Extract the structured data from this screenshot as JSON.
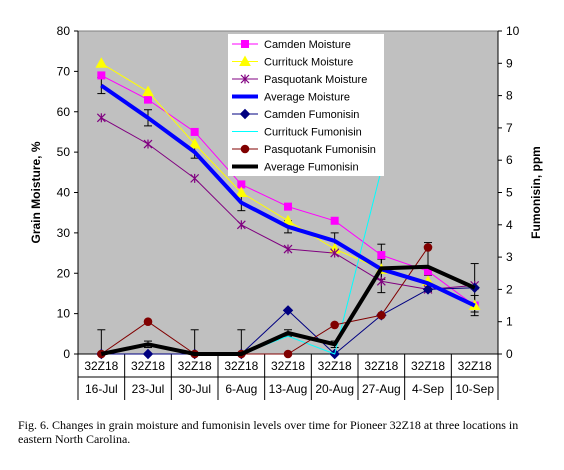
{
  "chart_data": {
    "type": "line",
    "categories": [
      "16-Jul",
      "23-Jul",
      "30-Jul",
      "6-Aug",
      "13-Aug",
      "20-Aug",
      "27-Aug",
      "4-Sep",
      "10-Sep"
    ],
    "category_group_label": "32Z18",
    "ylabel": "Grain Moisture, %",
    "y2label": "Fumonisin, ppm",
    "ylim": [
      0,
      80
    ],
    "y_ticks": [
      0,
      10,
      20,
      30,
      40,
      50,
      60,
      70,
      80
    ],
    "y2lim": [
      0,
      10
    ],
    "y2_ticks": [
      0,
      1,
      2,
      3,
      4,
      5,
      6,
      7,
      8,
      9,
      10
    ],
    "grid": false,
    "legend_position": "top-center",
    "series": [
      {
        "name": "Camden Moisture",
        "axis": "left",
        "color": "#ff00ff",
        "marker": "square",
        "width": 1,
        "values": [
          69,
          63,
          55,
          42,
          36.5,
          33,
          24.5,
          20.5,
          12
        ]
      },
      {
        "name": "Currituck Moisture",
        "axis": "left",
        "color": "#ffff00",
        "marker": "triangle",
        "width": 1,
        "values": [
          72,
          65,
          52,
          40,
          33,
          26,
          21,
          18,
          12
        ]
      },
      {
        "name": "Pasquotank Moisture",
        "axis": "left",
        "color": "#800080",
        "marker": "star",
        "width": 1,
        "values": [
          58.5,
          52,
          43.5,
          32,
          26,
          25,
          18,
          16,
          17
        ]
      },
      {
        "name": "Average Moisture",
        "axis": "left",
        "color": "#0000ff",
        "marker": "none",
        "width": 4,
        "values": [
          66.5,
          58.5,
          50,
          37.5,
          31.5,
          28,
          21,
          17.5,
          12
        ]
      },
      {
        "name": "Camden Fumonisin",
        "axis": "right",
        "color": "#000080",
        "marker": "diamond",
        "width": 1,
        "values": [
          0,
          0,
          0,
          0,
          1.35,
          0,
          1.2,
          2.0,
          2.05
        ]
      },
      {
        "name": "Currituck Fumonisin",
        "axis": "right",
        "color": "#00ffff",
        "marker": "none",
        "width": 1,
        "values": [
          0,
          0.3,
          0,
          0,
          0.55,
          0,
          5.7,
          null,
          null
        ]
      },
      {
        "name": "Pasquotank Fumonisin",
        "axis": "right",
        "color": "#800000",
        "marker": "circle",
        "width": 1,
        "values": [
          0,
          1.0,
          0,
          0,
          0,
          0.9,
          1.2,
          3.3,
          null
        ]
      },
      {
        "name": "Average Fumonisin",
        "axis": "right",
        "color": "#000000",
        "marker": "none",
        "width": 4,
        "values": [
          0,
          0.3,
          0,
          0,
          0.65,
          0.3,
          2.65,
          2.7,
          2.05
        ]
      }
    ],
    "error_bars": [
      {
        "series": "Average Moisture",
        "values": [
          66.5,
          58.5,
          50,
          37.5,
          31.5,
          28,
          21,
          17.5,
          12
        ],
        "err": [
          2,
          2,
          1.5,
          2,
          1.5,
          2,
          2.5,
          2,
          2.5
        ]
      },
      {
        "series": "Average Fumonisin",
        "values": [
          0,
          0.3,
          0,
          0,
          0.65,
          0.3,
          2.65,
          2.7,
          2.05
        ],
        "err": [
          0.75,
          0.1,
          0.75,
          0.75,
          0.1,
          0.1,
          0.75,
          0.75,
          0.75
        ]
      }
    ]
  },
  "caption": "Fig. 6.  Changes in grain moisture and fumonisin levels over time for Pioneer 32Z18 at three locations in eastern North Carolina."
}
